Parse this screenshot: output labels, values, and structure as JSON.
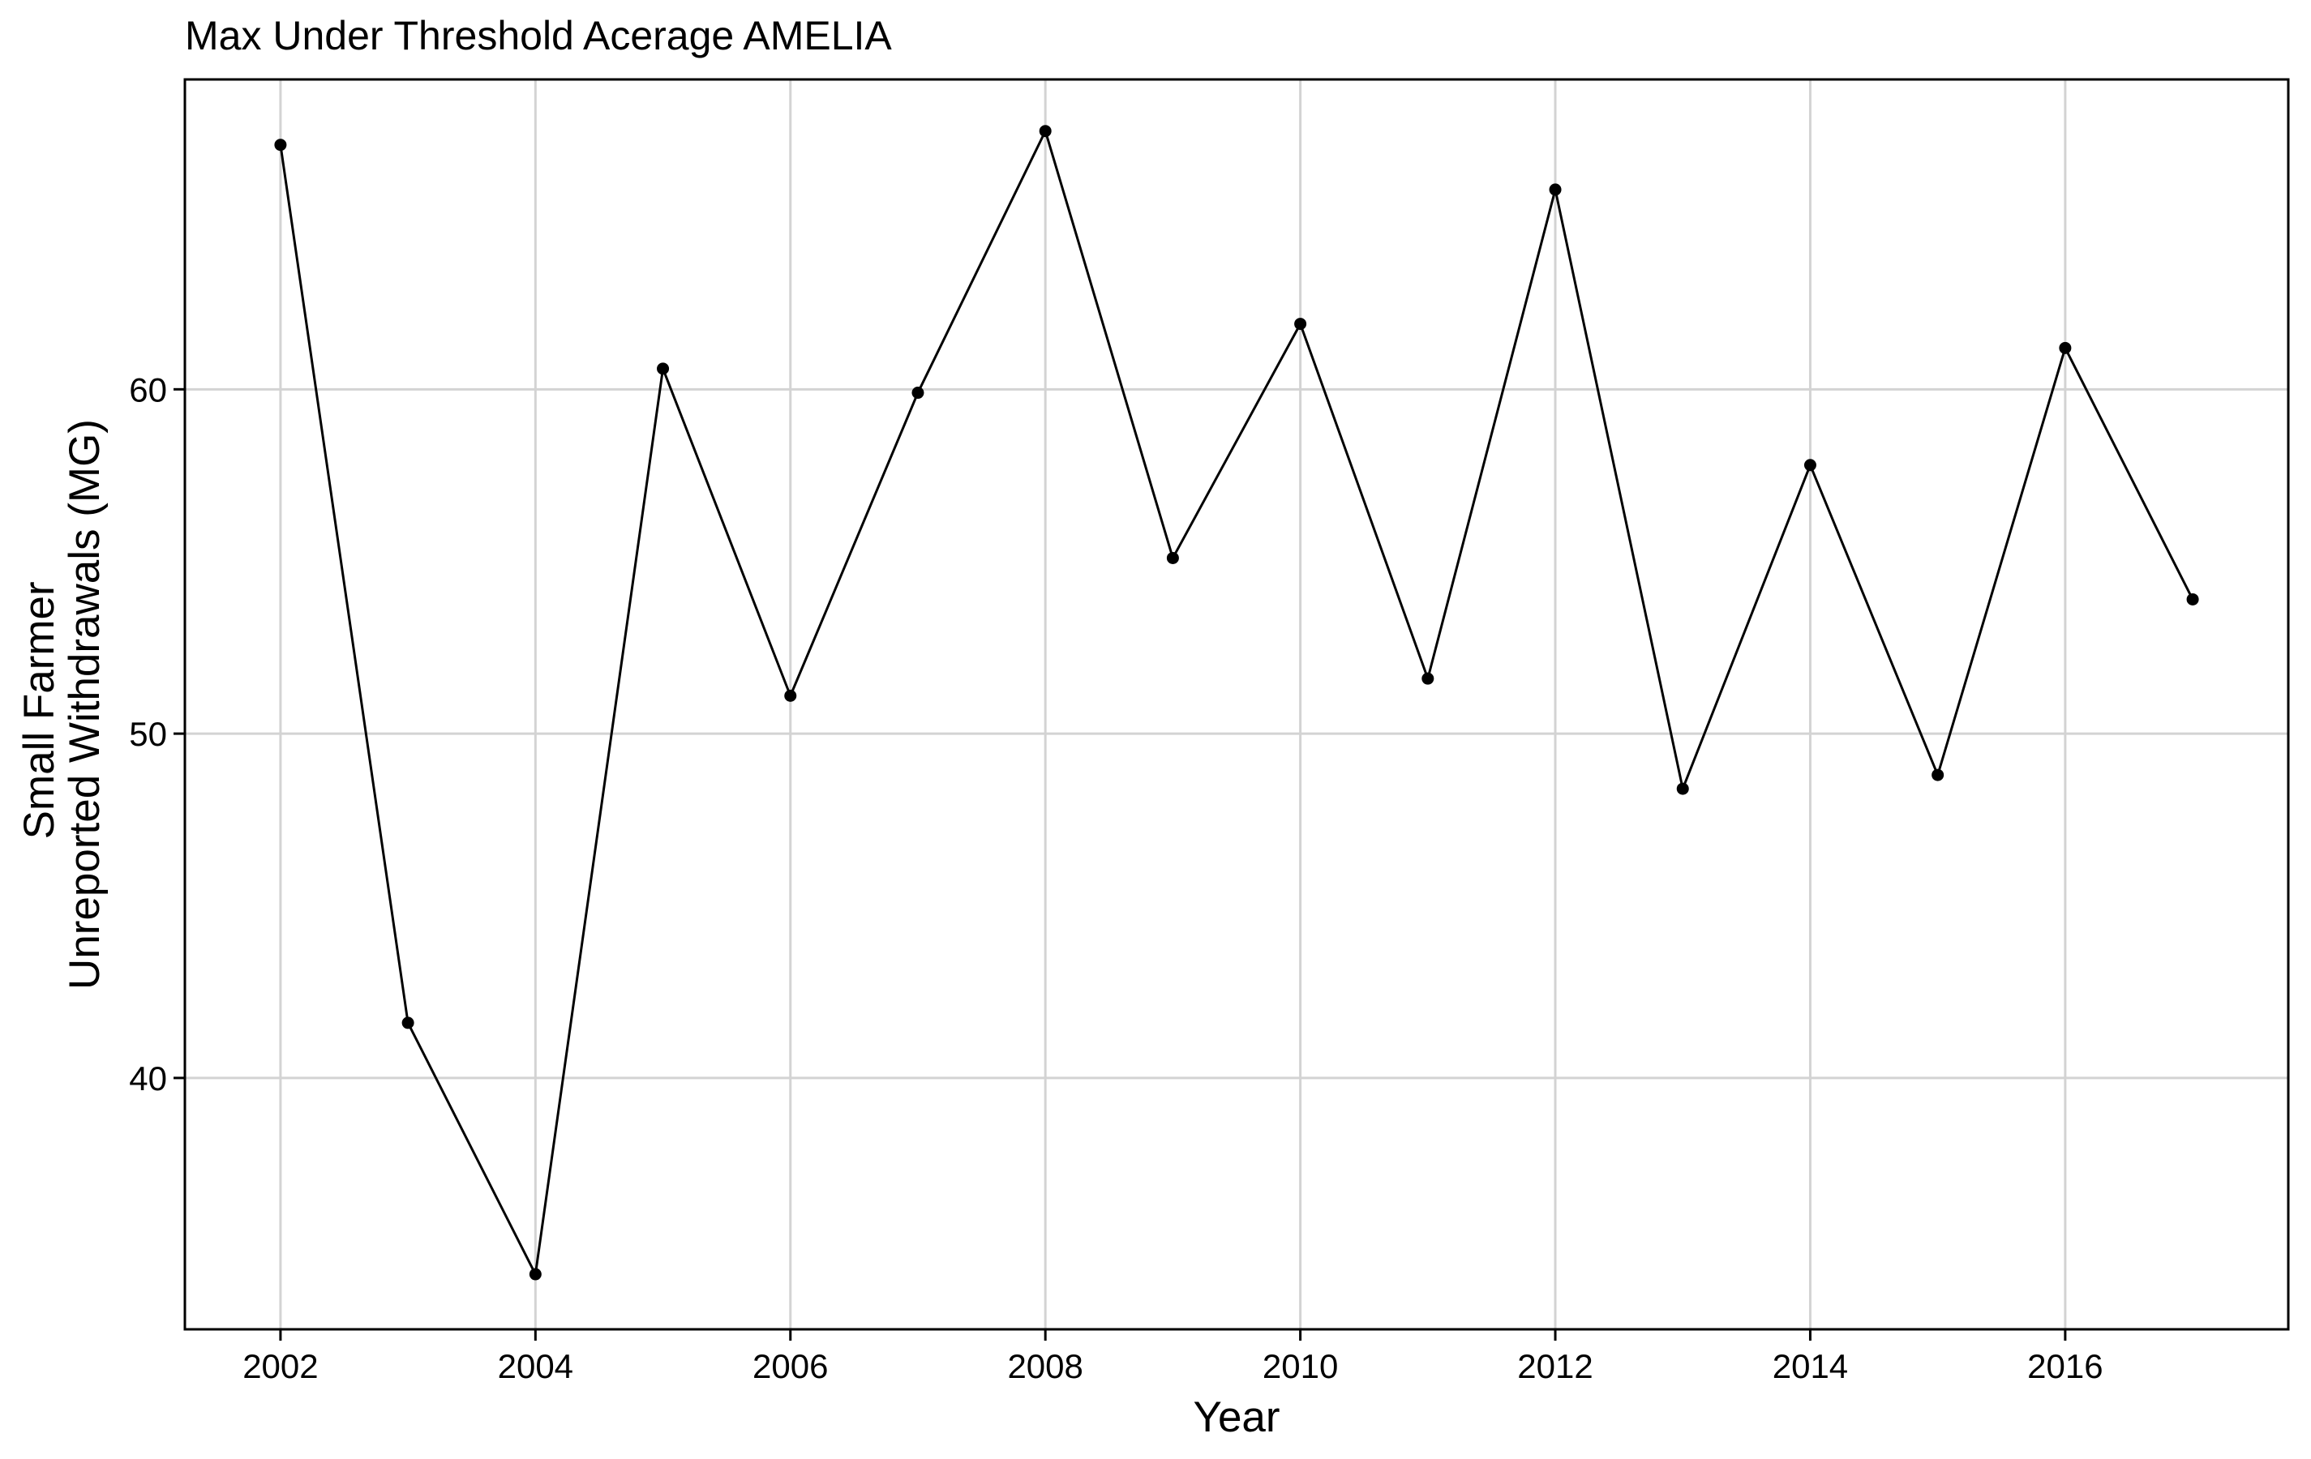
{
  "chart_data": {
    "type": "line",
    "title": "Max Under Threshold Acerage AMELIA",
    "xlabel": "Year",
    "ylabel_lines": [
      "Small Farmer",
      "Unreported Withdrawals (MG)"
    ],
    "x": [
      2002,
      2003,
      2004,
      2005,
      2006,
      2007,
      2008,
      2009,
      2010,
      2011,
      2012,
      2013,
      2014,
      2015,
      2016,
      2017
    ],
    "series": [
      {
        "values": [
          67.1,
          41.6,
          34.3,
          60.6,
          51.1,
          59.9,
          67.5,
          55.1,
          61.9,
          51.6,
          65.8,
          48.4,
          57.8,
          48.8,
          61.2,
          53.9
        ]
      }
    ],
    "xlim": [
      2001.25,
      2017.75
    ],
    "ylim": [
      32.7,
      69.0
    ],
    "x_ticks": [
      2002,
      2004,
      2006,
      2008,
      2010,
      2012,
      2014,
      2016
    ],
    "y_ticks": [
      40,
      50,
      60
    ],
    "grid": true,
    "legend": "none",
    "colors": {
      "line": "#000000",
      "point": "#000000",
      "grid": "#d3d3d3",
      "background": "#ffffff"
    }
  }
}
